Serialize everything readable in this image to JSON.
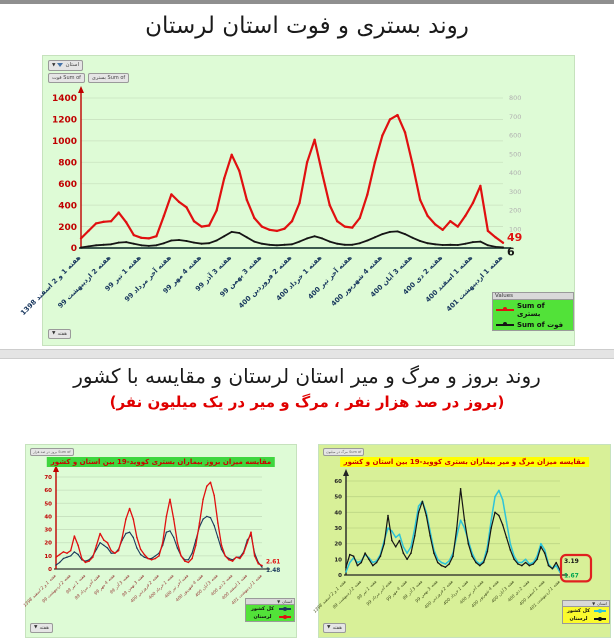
{
  "page": {
    "title1": "روند بستری و فوت استان لرستان",
    "title2": "روند بروز و مرگ و میر استان لرستان و مقایسه با کشور",
    "subtitle2": "(بروز در صد هزار نفر ، مرگ و میر در یک میلیون نفر)"
  },
  "pivot": {
    "estan_filter": "استان",
    "hafte_field": "هفته",
    "chart1_fields": [
      "Sum of فوت",
      "Sum of بستری"
    ],
    "chart2_field": "Sum of بروز در صد هزار",
    "chart3_field": "Sum of مرگ در میلیون"
  },
  "legend1": {
    "header": "Values",
    "items": [
      {
        "label": "Sum of بستری",
        "color": "#e01010"
      },
      {
        "label": "Sum of فوت",
        "color": "#151515"
      }
    ]
  },
  "legend2": {
    "header": "استان",
    "items": [
      {
        "label": "کل کشور",
        "color": "#1b3a5c"
      },
      {
        "label": "لرستان",
        "color": "#e01010"
      }
    ]
  },
  "legend3": {
    "header": "استان",
    "items": [
      {
        "label": "کل کشور",
        "color": "#2ec4d8"
      },
      {
        "label": "لرستان",
        "color": "#151515"
      }
    ]
  },
  "chart_data": [
    {
      "id": "bestari-foot-trend",
      "type": "line",
      "title": "روند بستری و فوت استان لرستان",
      "legend_position": "bottom-right",
      "grid": true,
      "points_per_tick": 4,
      "categories": [
        "هفته 1 و 2 اسفند 1398",
        "هفته 2 اردیبهشت 99",
        "هفته 1 تیر 99",
        "هفته آخر مرداد 99",
        "هفته 4 مهر 99",
        "هفته 3 آذر 99",
        "هفته 3 بهمن 99",
        "هفته 2 فروردین 400",
        "هفته 1 خرداد 400",
        "هفته آخر تیر 400",
        "هفته 4 شهریور 400",
        "هفته 3 آبان 400",
        "هفته 2 دی 400",
        "هفته 1 اسفند 400",
        "هفته 1 اردیبهشت 401"
      ],
      "ylim": [
        0,
        1400
      ],
      "yticks": [
        0,
        200,
        400,
        600,
        800,
        1000,
        1200,
        1400
      ],
      "y2lim": [
        0,
        800
      ],
      "y2ticks": [
        100,
        200,
        300,
        400,
        500,
        600,
        700,
        800
      ],
      "series": [
        {
          "name": "Sum of بستری",
          "color": "#e01010",
          "values": [
            90,
            160,
            230,
            245,
            250,
            330,
            240,
            120,
            95,
            90,
            110,
            300,
            500,
            430,
            380,
            250,
            200,
            210,
            350,
            650,
            870,
            720,
            450,
            280,
            200,
            170,
            160,
            180,
            250,
            420,
            800,
            1010,
            700,
            400,
            250,
            200,
            190,
            280,
            500,
            800,
            1050,
            1200,
            1240,
            1080,
            780,
            450,
            300,
            220,
            170,
            250,
            200,
            300,
            420,
            580,
            160,
            100,
            49
          ]
        },
        {
          "name": "Sum of فوت",
          "color": "#151515",
          "values": [
            5,
            15,
            25,
            30,
            35,
            50,
            55,
            40,
            25,
            20,
            25,
            45,
            70,
            75,
            65,
            50,
            40,
            45,
            70,
            110,
            150,
            140,
            100,
            60,
            40,
            30,
            25,
            30,
            35,
            60,
            90,
            110,
            90,
            60,
            40,
            30,
            30,
            45,
            70,
            100,
            130,
            150,
            155,
            130,
            95,
            65,
            45,
            35,
            28,
            30,
            28,
            40,
            55,
            60,
            25,
            10,
            6
          ]
        }
      ],
      "end_labels": [
        {
          "text": "49",
          "color": "#e01010"
        },
        {
          "text": "6",
          "color": "#151515"
        }
      ]
    },
    {
      "id": "boruz-compare",
      "type": "line",
      "title": "مقایسه میزان بروز بیماران بستری کووید-19 بین استان و کشور",
      "title_bg": "#3ed63e",
      "title_color": "#cc0000",
      "grid": true,
      "points_per_tick": 4,
      "categories": [
        "هفته 1 و 2 اسفند 1398",
        "هفته 2 اردیبهشت 99",
        "هفته 1 تیر 99",
        "هفته آخر مرداد 99",
        "هفته 4 مهر 99",
        "هفته 3 آذر 99",
        "هفته 3 بهمن 99",
        "هفته 2 فروردین 400",
        "هفته 1 خرداد 400",
        "هفته آخر تیر 400",
        "هفته 4 شهریور 400",
        "هفته 3 آبان 400",
        "هفته 2 دی 400",
        "هفته 1 اسفند 400",
        "هفته 1 اردیبهشت 401"
      ],
      "ylim": [
        0,
        70
      ],
      "yticks": [
        0,
        10,
        20,
        30,
        40,
        50,
        60,
        70
      ],
      "series": [
        {
          "name": "کل کشور",
          "color": "#1b3a5c",
          "values": [
            3,
            5,
            8,
            9,
            10,
            13,
            11,
            7,
            6,
            7,
            10,
            15,
            20,
            18,
            16,
            12,
            12,
            15,
            22,
            27,
            28,
            24,
            16,
            11,
            9,
            8,
            8,
            10,
            12,
            18,
            28,
            29,
            24,
            16,
            10,
            7,
            7,
            12,
            22,
            32,
            38,
            40,
            39,
            33,
            24,
            15,
            10,
            8,
            7,
            9,
            9,
            13,
            22,
            26,
            12,
            5,
            1.48
          ]
        },
        {
          "name": "لرستان",
          "color": "#e01010",
          "values": [
            9,
            11,
            13,
            12,
            14,
            25,
            18,
            8,
            5,
            6,
            9,
            18,
            27,
            22,
            20,
            14,
            12,
            14,
            24,
            38,
            46,
            38,
            24,
            15,
            11,
            8,
            7,
            8,
            10,
            20,
            40,
            53,
            38,
            20,
            10,
            6,
            5,
            8,
            18,
            35,
            53,
            63,
            66,
            56,
            35,
            18,
            10,
            7,
            6,
            9,
            8,
            12,
            20,
            28,
            10,
            4,
            2.61
          ]
        }
      ],
      "end_labels": [
        {
          "text": "1.48",
          "color": "#1b3a5c"
        },
        {
          "text": "2.61",
          "color": "#e01010"
        }
      ]
    },
    {
      "id": "marg-compare",
      "type": "line",
      "title": "مقایسه میزان مرگ و میر بیماران بستری کووید-19 بین استان و کشور",
      "title_bg": "#ffff00",
      "title_color": "#cc0000",
      "grid": true,
      "points_per_tick": 4,
      "end_box": true,
      "end_box_color": "#e02020",
      "categories": [
        "هفته 1 و 2 اسفند 1398",
        "هفته 2 اردیبهشت 99",
        "هفته 1 تیر 99",
        "هفته آخر مرداد 99",
        "هفته 4 مهر 99",
        "هفته 3 آذر 99",
        "هفته 3 بهمن 99",
        "هفته 2 فروردین 400",
        "هفته 1 خرداد 400",
        "هفته آخر تیر 400",
        "هفته 4 شهریور 400",
        "هفته 3 آبان 400",
        "هفته 2 دی 400",
        "هفته 1 اسفند 400",
        "هفته 1 اردیبهشت 401"
      ],
      "ylim": [
        0,
        60
      ],
      "yticks": [
        0,
        10,
        20,
        30,
        40,
        50,
        60
      ],
      "series": [
        {
          "name": "کل کشور",
          "color": "#2ec4d8",
          "values": [
            2,
            8,
            11,
            8,
            9,
            13,
            11,
            8,
            9,
            13,
            22,
            30,
            28,
            24,
            26,
            18,
            14,
            18,
            30,
            44,
            47,
            40,
            28,
            16,
            10,
            8,
            7,
            9,
            14,
            25,
            35,
            30,
            22,
            14,
            9,
            7,
            9,
            18,
            35,
            50,
            54,
            48,
            34,
            20,
            12,
            8,
            8,
            10,
            7,
            8,
            12,
            20,
            16,
            7,
            4,
            6,
            1.67
          ]
        },
        {
          "name": "لرستان",
          "color": "#151515",
          "values": [
            5,
            13,
            12,
            6,
            8,
            14,
            10,
            6,
            8,
            12,
            20,
            38,
            22,
            18,
            22,
            14,
            10,
            14,
            25,
            40,
            47,
            38,
            25,
            14,
            8,
            6,
            5,
            7,
            12,
            30,
            55,
            35,
            20,
            12,
            8,
            6,
            8,
            15,
            30,
            40,
            38,
            32,
            24,
            16,
            10,
            7,
            6,
            8,
            6,
            7,
            10,
            18,
            14,
            6,
            4,
            8,
            3.19
          ]
        }
      ],
      "end_labels": [
        {
          "text": "1.67",
          "color": "#00a550"
        },
        {
          "text": "3.19",
          "color": "#151515"
        }
      ]
    }
  ]
}
